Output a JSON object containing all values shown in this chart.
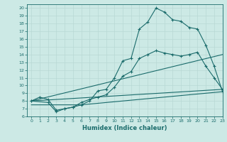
{
  "title": "",
  "xlabel": "Humidex (Indice chaleur)",
  "xlim": [
    -0.5,
    23
  ],
  "ylim": [
    6,
    20.5
  ],
  "yticks": [
    6,
    7,
    8,
    9,
    10,
    11,
    12,
    13,
    14,
    15,
    16,
    17,
    18,
    19,
    20
  ],
  "xticks": [
    0,
    1,
    2,
    3,
    4,
    5,
    6,
    7,
    8,
    9,
    10,
    11,
    12,
    13,
    14,
    15,
    16,
    17,
    18,
    19,
    20,
    21,
    22,
    23
  ],
  "bg_color": "#cce9e5",
  "line_color": "#1a6b6b",
  "grid_color": "#b8d8d4",
  "line1_x": [
    0,
    1,
    2,
    3,
    4,
    5,
    6,
    7,
    8,
    9,
    10,
    11,
    12,
    13,
    14,
    15,
    16,
    17,
    18,
    19,
    20,
    21,
    22,
    23
  ],
  "line1_y": [
    8.0,
    8.5,
    8.2,
    6.8,
    7.0,
    7.2,
    7.5,
    8.0,
    9.3,
    9.5,
    11.0,
    13.2,
    13.5,
    17.3,
    18.2,
    20.0,
    19.5,
    18.5,
    18.3,
    17.5,
    17.3,
    15.2,
    12.5,
    9.2
  ],
  "line2_x": [
    0,
    2,
    3,
    4,
    5,
    6,
    7,
    8,
    9,
    10,
    11,
    12,
    13,
    14,
    15,
    16,
    17,
    18,
    19,
    20,
    21,
    22,
    23
  ],
  "line2_y": [
    8.0,
    7.8,
    6.6,
    7.0,
    7.2,
    7.8,
    8.2,
    8.5,
    8.8,
    9.8,
    11.2,
    11.8,
    13.5,
    14.0,
    14.5,
    14.2,
    14.0,
    13.8,
    14.0,
    14.3,
    12.5,
    11.0,
    9.5
  ],
  "line3_x": [
    0,
    23
  ],
  "line3_y": [
    8.0,
    14.0
  ],
  "line4_x": [
    0,
    23
  ],
  "line4_y": [
    8.0,
    9.5
  ],
  "line5_x": [
    0,
    1,
    2,
    3,
    4,
    5,
    6,
    7,
    8,
    9,
    10,
    11,
    12,
    13,
    14,
    15,
    16,
    17,
    18,
    19,
    20,
    21,
    22,
    23
  ],
  "line5_y": [
    7.5,
    7.5,
    7.5,
    7.5,
    7.5,
    7.5,
    7.5,
    7.6,
    7.7,
    7.8,
    7.9,
    8.0,
    8.1,
    8.2,
    8.3,
    8.4,
    8.5,
    8.6,
    8.7,
    8.8,
    8.9,
    9.0,
    9.1,
    9.2
  ]
}
